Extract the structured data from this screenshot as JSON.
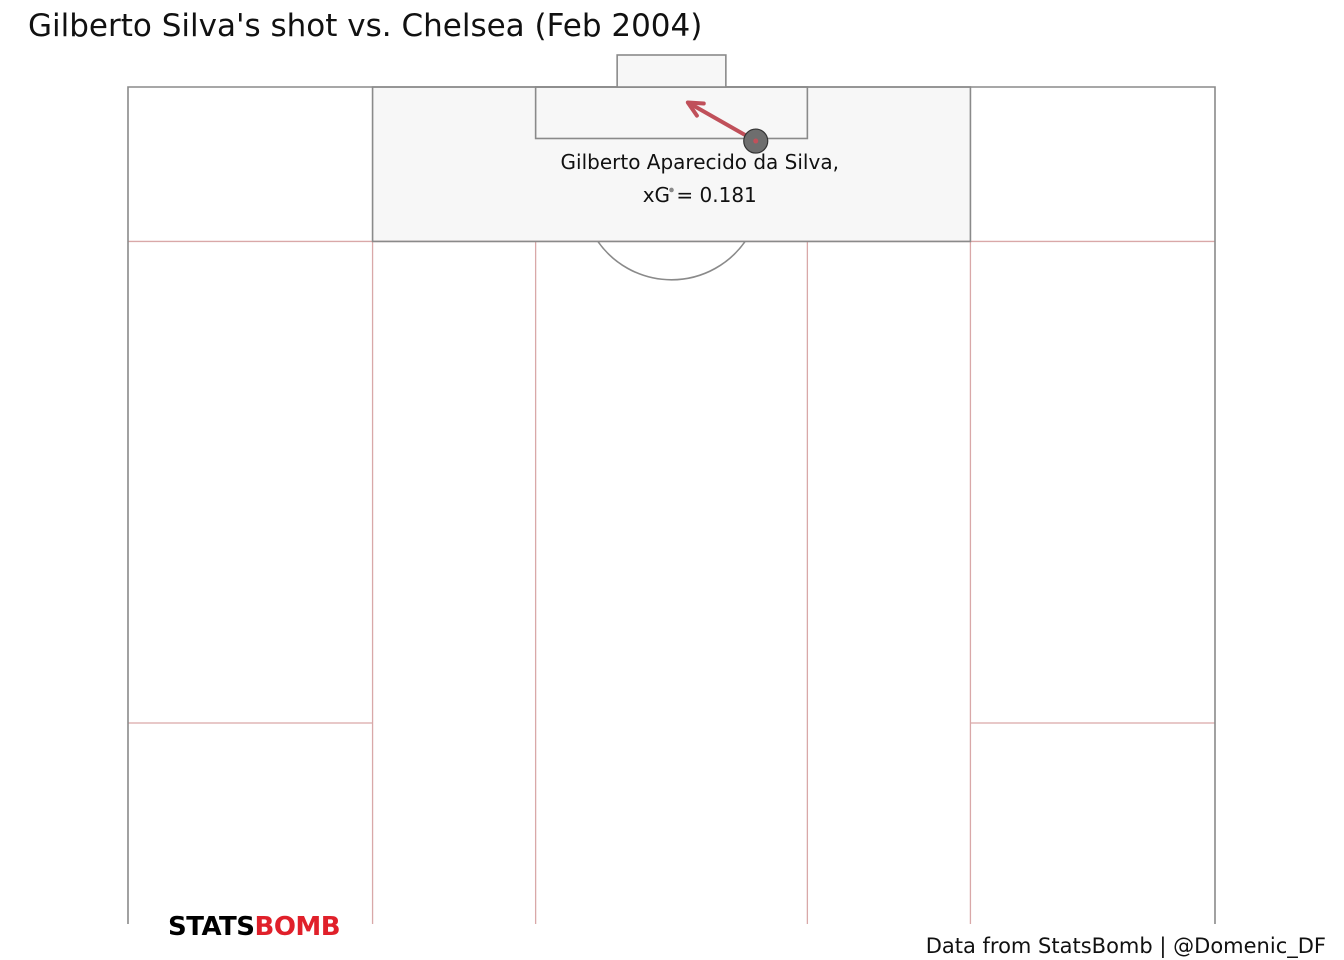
{
  "title": "Gilberto Silva's shot vs. Chelsea (Feb 2004)",
  "credit": {
    "source": "Data from StatsBomb",
    "separator": "|",
    "handle": "@Domenic_DF"
  },
  "logo": {
    "part1": "STATS",
    "part2": "BOMB"
  },
  "colors": {
    "pitch_line": "#8a8a8a",
    "zone_line": "#d9a8a8",
    "box_fill": "#f7f7f7",
    "shot_arrow": "#c0505a",
    "shot_marker": "#6e6e6e",
    "logo_accent": "#e0202a"
  },
  "chart_data": {
    "type": "scatter",
    "pitch": {
      "length": 120,
      "width": 80,
      "orientation": "vertical",
      "half": "attacking",
      "view_x_range": [
        60,
        120
      ]
    },
    "shots": [
      {
        "player": "Gilberto Aparecido da Silva",
        "label_line1": "Gilberto Aparecido da Silva,",
        "label_line2": "xG = 0.181",
        "xg": 0.181,
        "start": {
          "x": 113.7,
          "y": 46.2
        },
        "end": {
          "x": 118.2,
          "y": 41.2
        }
      }
    ]
  }
}
